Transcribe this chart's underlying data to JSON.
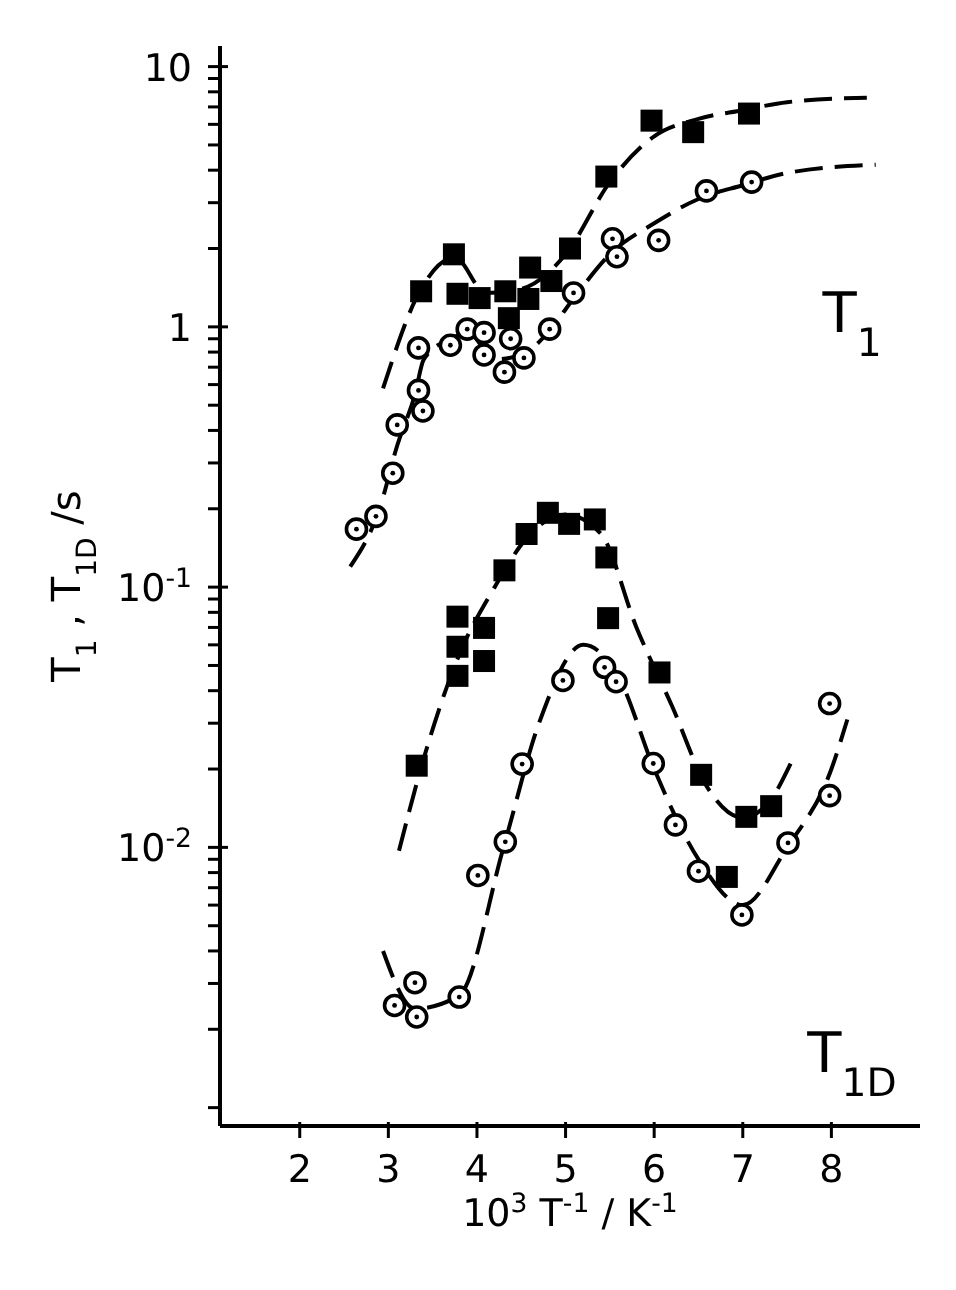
{
  "chart_data": {
    "type": "scatter",
    "xlabel": "10$^{3}$ T$^{-1}$ / K$^{-1}$",
    "ylabel": "T$_{1}$ , T$_{1D}$ /s",
    "log": "y",
    "xlim": [
      1.1,
      9
    ],
    "xticks": [
      2,
      3,
      4,
      5,
      6,
      7,
      8
    ],
    "ylim": [
      0.00085,
      12
    ],
    "yticks": [
      {
        "value": 0.001,
        "label": null
      },
      {
        "value": 0.002,
        "label": null
      },
      {
        "value": 0.003,
        "label": null
      },
      {
        "value": 0.004,
        "label": null
      },
      {
        "value": 0.005,
        "label": null
      },
      {
        "value": 0.006,
        "label": null
      },
      {
        "value": 0.007,
        "label": null
      },
      {
        "value": 0.008,
        "label": null
      },
      {
        "value": 0.009,
        "label": null
      },
      {
        "value": 0.01,
        "label": "10$^{-2}$"
      },
      {
        "value": 0.02,
        "label": null
      },
      {
        "value": 0.03,
        "label": null
      },
      {
        "value": 0.04,
        "label": null
      },
      {
        "value": 0.05,
        "label": null
      },
      {
        "value": 0.06,
        "label": null
      },
      {
        "value": 0.07,
        "label": null
      },
      {
        "value": 0.08,
        "label": null
      },
      {
        "value": 0.09,
        "label": null
      },
      {
        "value": 0.1,
        "label": "10$^{-1}$"
      },
      {
        "value": 0.2,
        "label": null
      },
      {
        "value": 0.3,
        "label": null
      },
      {
        "value": 0.4,
        "label": null
      },
      {
        "value": 0.5,
        "label": null
      },
      {
        "value": 0.6,
        "label": null
      },
      {
        "value": 0.7,
        "label": null
      },
      {
        "value": 0.8,
        "label": null
      },
      {
        "value": 0.9,
        "label": null
      },
      1,
      {
        "value": 2,
        "label": null
      },
      {
        "value": 3,
        "label": null
      },
      {
        "value": 4,
        "label": null
      },
      {
        "value": 5,
        "label": null
      },
      {
        "value": 6,
        "label": null
      },
      {
        "value": 7,
        "label": null
      },
      {
        "value": 8,
        "label": null
      },
      {
        "value": 9,
        "label": null
      },
      10
    ],
    "annotations": [
      "T$_{1}$",
      "T$_{1D}$"
    ],
    "series": [
      {
        "marker": "square",
        "color": "#000000",
        "x": [
          3.37,
          3.74,
          3.78,
          4.03,
          4.32,
          4.36,
          4.58,
          4.6,
          4.84,
          5.05,
          5.46,
          5.97,
          6.44,
          7.07
        ],
        "values": [
          1.37,
          1.9,
          1.34,
          1.29,
          1.37,
          1.08,
          1.28,
          1.69,
          1.5,
          2.0,
          3.78,
          6.2,
          5.6,
          6.6
        ]
      },
      {
        "marker": "circle",
        "color": "#000000",
        "x": [
          2.64,
          2.86,
          3.05,
          3.1,
          3.39,
          3.34,
          3.34,
          3.7,
          3.89,
          4.08,
          4.08,
          4.38,
          4.31,
          4.53,
          4.82,
          5.09,
          5.53,
          5.58,
          6.05,
          6.59,
          7.1
        ],
        "values": [
          0.167,
          0.187,
          0.274,
          0.42,
          0.475,
          0.57,
          0.83,
          0.85,
          0.98,
          0.95,
          0.78,
          0.9,
          0.67,
          0.76,
          0.98,
          1.35,
          2.18,
          1.86,
          2.15,
          3.33,
          3.6
        ]
      },
      {
        "marker": "square",
        "color": "#000000",
        "x": [
          3.32,
          3.78,
          3.78,
          3.78,
          4.08,
          4.08,
          4.31,
          4.56,
          4.8,
          5.04,
          5.33,
          5.46,
          5.48,
          6.06,
          6.53,
          7.04,
          7.32,
          6.82
        ],
        "values": [
          0.0206,
          0.077,
          0.059,
          0.0456,
          0.0697,
          0.052,
          0.116,
          0.16,
          0.193,
          0.175,
          0.182,
          0.13,
          0.076,
          0.047,
          0.019,
          0.0131,
          0.0144,
          0.0077
        ]
      },
      {
        "marker": "circle",
        "color": "#000000",
        "x": [
          3.07,
          3.3,
          3.32,
          3.8,
          4.01,
          4.32,
          4.51,
          4.97,
          5.44,
          5.57,
          5.99,
          6.24,
          6.5,
          6.99,
          7.51,
          7.98,
          7.98
        ],
        "values": [
          0.00247,
          0.00302,
          0.00223,
          0.00266,
          0.0078,
          0.0105,
          0.0209,
          0.0438,
          0.0492,
          0.0433,
          0.021,
          0.0122,
          0.0081,
          0.0055,
          0.0104,
          0.0158,
          0.0357
        ]
      },
      {
        "type": "line",
        "line_style": "dashed",
        "color": "#000000",
        "x": [
          2.94,
          3.37,
          3.75,
          4.1,
          4.5,
          5.0,
          5.5,
          6.0,
          6.5,
          7.0,
          7.5,
          8.4
        ],
        "values": [
          0.58,
          1.4,
          1.85,
          1.35,
          1.4,
          1.9,
          3.6,
          5.4,
          6.3,
          6.8,
          7.3,
          7.6
        ]
      },
      {
        "type": "line",
        "line_style": "dashed",
        "color": "#000000",
        "x": [
          2.57,
          2.9,
          3.1,
          3.3,
          3.4,
          3.7,
          3.9,
          4.2,
          4.5,
          4.8,
          5.1,
          5.5,
          6.0,
          6.5,
          7.0,
          7.5,
          8.5
        ],
        "values": [
          0.12,
          0.2,
          0.35,
          0.55,
          0.75,
          0.9,
          0.95,
          0.75,
          0.78,
          0.95,
          1.3,
          1.9,
          2.5,
          3.1,
          3.5,
          3.9,
          4.2
        ]
      },
      {
        "type": "line",
        "line_style": "dashed",
        "color": "#000000",
        "x": [
          3.12,
          3.4,
          3.8,
          4.2,
          4.6,
          5.0,
          5.4,
          5.8,
          6.2,
          6.6,
          7.0,
          7.3,
          7.54
        ],
        "values": [
          0.0097,
          0.022,
          0.055,
          0.1,
          0.16,
          0.19,
          0.16,
          0.07,
          0.035,
          0.017,
          0.013,
          0.015,
          0.021
        ]
      },
      {
        "type": "line",
        "line_style": "dashed",
        "color": "#000000",
        "x": [
          2.94,
          3.3,
          3.8,
          4.3,
          4.7,
          5.2,
          5.6,
          6.0,
          6.5,
          7.0,
          7.5,
          8.0,
          8.18
        ],
        "values": [
          0.004,
          0.0024,
          0.0027,
          0.01,
          0.03,
          0.06,
          0.045,
          0.02,
          0.009,
          0.006,
          0.01,
          0.02,
          0.031
        ]
      }
    ]
  }
}
